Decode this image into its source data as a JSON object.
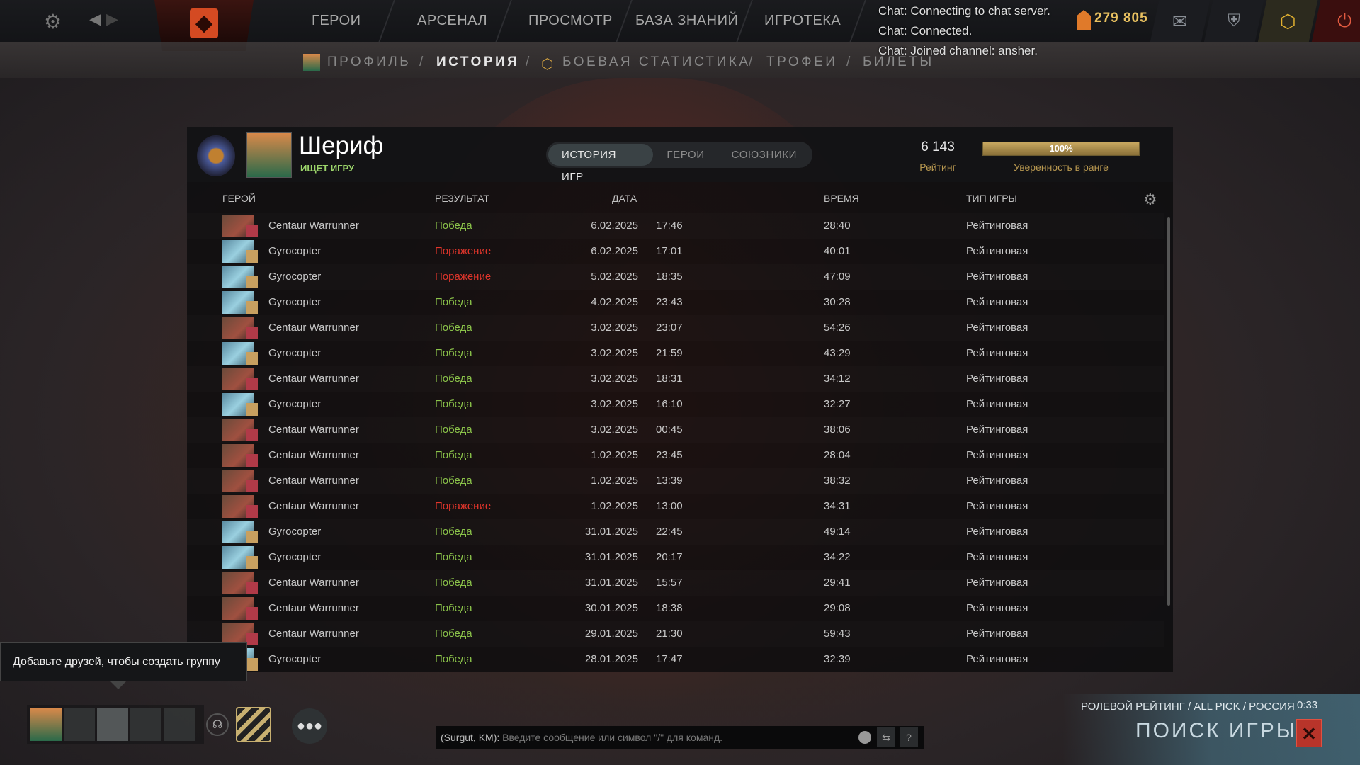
{
  "topnav": {
    "items": [
      "ГЕРОИ",
      "АРСЕНАЛ",
      "ПРОСМОТР",
      "БАЗА ЗНАНИЙ",
      "ИГРОТЕКА"
    ]
  },
  "subnav": {
    "items": [
      "ПРОФИЛЬ",
      "ИСТОРИЯ",
      "БОЕВАЯ СТАТИСТИКА",
      "ТРОФЕИ",
      "БИЛЕТЫ"
    ],
    "separator": "/",
    "active": "ИСТОРИЯ"
  },
  "chatlog": [
    "Chat: Connecting to chat server.",
    "Chat: Connected.",
    "Chat: Joined channel: ansher."
  ],
  "shards": "279 805",
  "profile": {
    "name": "Шериф",
    "status": "ИЩЕТ ИГРУ",
    "rating": "6 143",
    "rating_label": "Рейтинг",
    "confidence": "100%",
    "confidence_value": 100,
    "confidence_label": "Уверенность в ранге"
  },
  "tabs": [
    "ИСТОРИЯ ИГР",
    "ГЕРОИ",
    "СОЮЗНИКИ"
  ],
  "columns": {
    "hero": "ГЕРОЙ",
    "result": "РЕЗУЛЬТАТ",
    "date": "ДАТА",
    "duration": "ВРЕМЯ",
    "type": "ТИП ИГРЫ"
  },
  "matches": [
    {
      "hero": "Centaur Warrunner",
      "result": "Победа",
      "win": true,
      "date": "6.02.2025",
      "time": "17:46",
      "duration": "28:40",
      "type": "Рейтинговая"
    },
    {
      "hero": "Gyrocopter",
      "result": "Поражение",
      "win": false,
      "date": "6.02.2025",
      "time": "17:01",
      "duration": "40:01",
      "type": "Рейтинговая"
    },
    {
      "hero": "Gyrocopter",
      "result": "Поражение",
      "win": false,
      "date": "5.02.2025",
      "time": "18:35",
      "duration": "47:09",
      "type": "Рейтинговая"
    },
    {
      "hero": "Gyrocopter",
      "result": "Победа",
      "win": true,
      "date": "4.02.2025",
      "time": "23:43",
      "duration": "30:28",
      "type": "Рейтинговая"
    },
    {
      "hero": "Centaur Warrunner",
      "result": "Победа",
      "win": true,
      "date": "3.02.2025",
      "time": "23:07",
      "duration": "54:26",
      "type": "Рейтинговая"
    },
    {
      "hero": "Gyrocopter",
      "result": "Победа",
      "win": true,
      "date": "3.02.2025",
      "time": "21:59",
      "duration": "43:29",
      "type": "Рейтинговая"
    },
    {
      "hero": "Centaur Warrunner",
      "result": "Победа",
      "win": true,
      "date": "3.02.2025",
      "time": "18:31",
      "duration": "34:12",
      "type": "Рейтинговая"
    },
    {
      "hero": "Gyrocopter",
      "result": "Победа",
      "win": true,
      "date": "3.02.2025",
      "time": "16:10",
      "duration": "32:27",
      "type": "Рейтинговая"
    },
    {
      "hero": "Centaur Warrunner",
      "result": "Победа",
      "win": true,
      "date": "3.02.2025",
      "time": "00:45",
      "duration": "38:06",
      "type": "Рейтинговая"
    },
    {
      "hero": "Centaur Warrunner",
      "result": "Победа",
      "win": true,
      "date": "1.02.2025",
      "time": "23:45",
      "duration": "28:04",
      "type": "Рейтинговая"
    },
    {
      "hero": "Centaur Warrunner",
      "result": "Победа",
      "win": true,
      "date": "1.02.2025",
      "time": "13:39",
      "duration": "38:32",
      "type": "Рейтинговая"
    },
    {
      "hero": "Centaur Warrunner",
      "result": "Поражение",
      "win": false,
      "date": "1.02.2025",
      "time": "13:00",
      "duration": "34:31",
      "type": "Рейтинговая"
    },
    {
      "hero": "Gyrocopter",
      "result": "Победа",
      "win": true,
      "date": "31.01.2025",
      "time": "22:45",
      "duration": "49:14",
      "type": "Рейтинговая"
    },
    {
      "hero": "Gyrocopter",
      "result": "Победа",
      "win": true,
      "date": "31.01.2025",
      "time": "20:17",
      "duration": "34:22",
      "type": "Рейтинговая"
    },
    {
      "hero": "Centaur Warrunner",
      "result": "Победа",
      "win": true,
      "date": "31.01.2025",
      "time": "15:57",
      "duration": "29:41",
      "type": "Рейтинговая"
    },
    {
      "hero": "Centaur Warrunner",
      "result": "Победа",
      "win": true,
      "date": "30.01.2025",
      "time": "18:38",
      "duration": "29:08",
      "type": "Рейтинговая"
    },
    {
      "hero": "Centaur Warrunner",
      "result": "Победа",
      "win": true,
      "date": "29.01.2025",
      "time": "21:30",
      "duration": "59:43",
      "type": "Рейтинговая"
    },
    {
      "hero": "Gyrocopter",
      "result": "Победа",
      "win": true,
      "date": "28.01.2025",
      "time": "17:47",
      "duration": "32:39",
      "type": "Рейтинговая"
    }
  ],
  "tooltip": "Добавьте друзей, чтобы создать группу",
  "chat": {
    "channel": "(Surgut, KM):",
    "placeholder": "Введите сообщение или символ \"/\" для команд.",
    "help": "?"
  },
  "matchmaking": {
    "mode": "РОЛЕВОЙ РЕЙТИНГ / ALL PICK / РОССИЯ",
    "timer": "0:33",
    "title": "ПОИСК ИГРЫ",
    "cancel": "✕"
  },
  "colors": {
    "win": "#8bc34a",
    "loss": "#e0352b",
    "accent": "#c8a860"
  }
}
